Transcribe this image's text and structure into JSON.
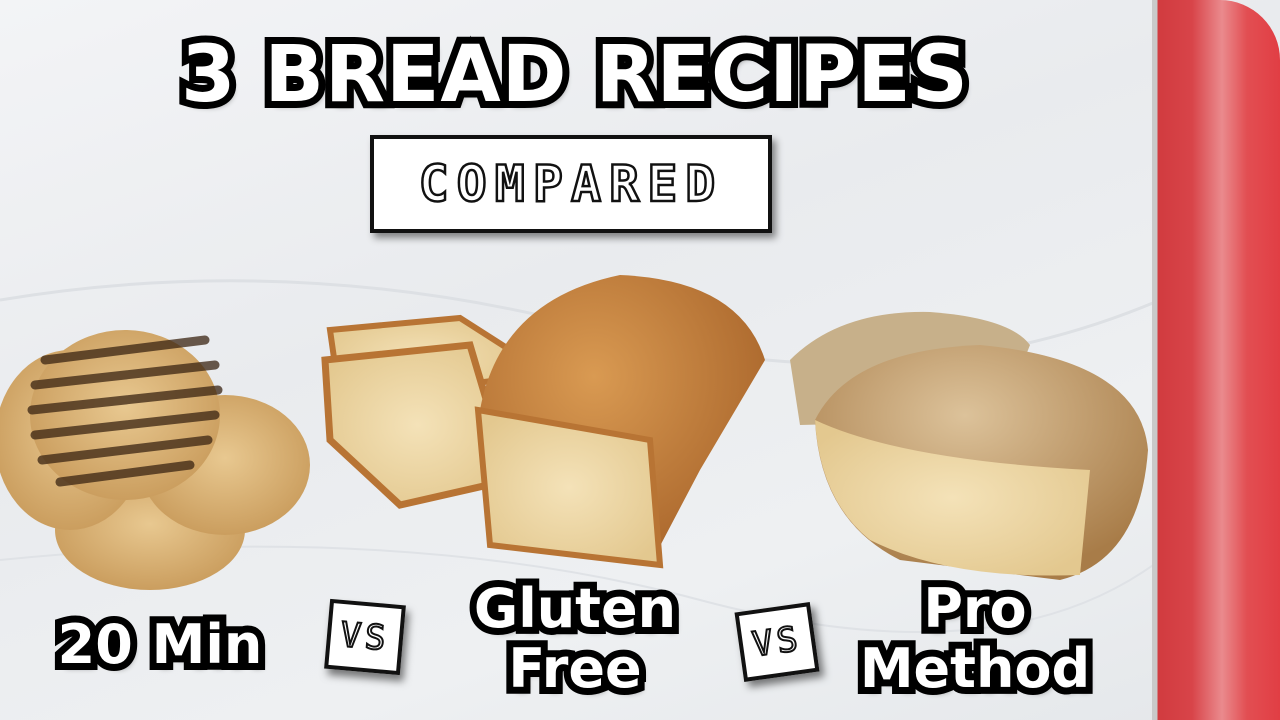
{
  "title": "3 BREAD RECIPES",
  "subtitle": "COMPARED",
  "labels": {
    "first": "20 Min",
    "second_line1": "Gluten",
    "second_line2": "Free",
    "third_line1": "Pro",
    "third_line2": "Method"
  },
  "vs_label": "VS",
  "colors": {
    "accent_red": "#e0484c",
    "background": "#eceef0",
    "crust": "#c2803c",
    "crumb": "#efd8a8"
  }
}
